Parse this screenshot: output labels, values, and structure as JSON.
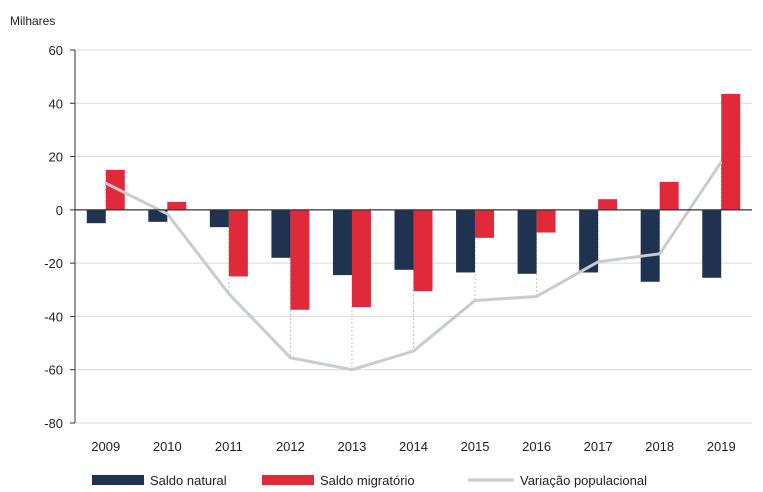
{
  "chart_data": {
    "type": "bar",
    "title": "",
    "unit_label": "Milhares",
    "categories": [
      "2009",
      "2010",
      "2011",
      "2012",
      "2013",
      "2014",
      "2015",
      "2016",
      "2017",
      "2018",
      "2019"
    ],
    "ylim": [
      -80,
      60
    ],
    "yticks": [
      60,
      40,
      20,
      0,
      -20,
      -40,
      -60,
      -80
    ],
    "grid": true,
    "legend_position": "bottom",
    "series": [
      {
        "name": "Saldo natural",
        "kind": "bar",
        "color": "#1f3351",
        "values": [
          -5,
          -4.5,
          -6.5,
          -18,
          -24.5,
          -22.5,
          -23.5,
          -24,
          -23.5,
          -27,
          -25.5
        ]
      },
      {
        "name": "Saldo migratório",
        "kind": "bar",
        "color": "#e02a3a",
        "values": [
          15,
          3,
          -25,
          -37.5,
          -36.5,
          -30.5,
          -10.5,
          -8.5,
          4,
          10.5,
          43.5
        ]
      },
      {
        "name": "Variação populacional",
        "kind": "line",
        "color": "#c9cbcd",
        "values": [
          10,
          -1.5,
          -31.5,
          -55.5,
          -60,
          -53,
          -34,
          -32.5,
          -19.5,
          -16.5,
          18
        ]
      }
    ]
  }
}
